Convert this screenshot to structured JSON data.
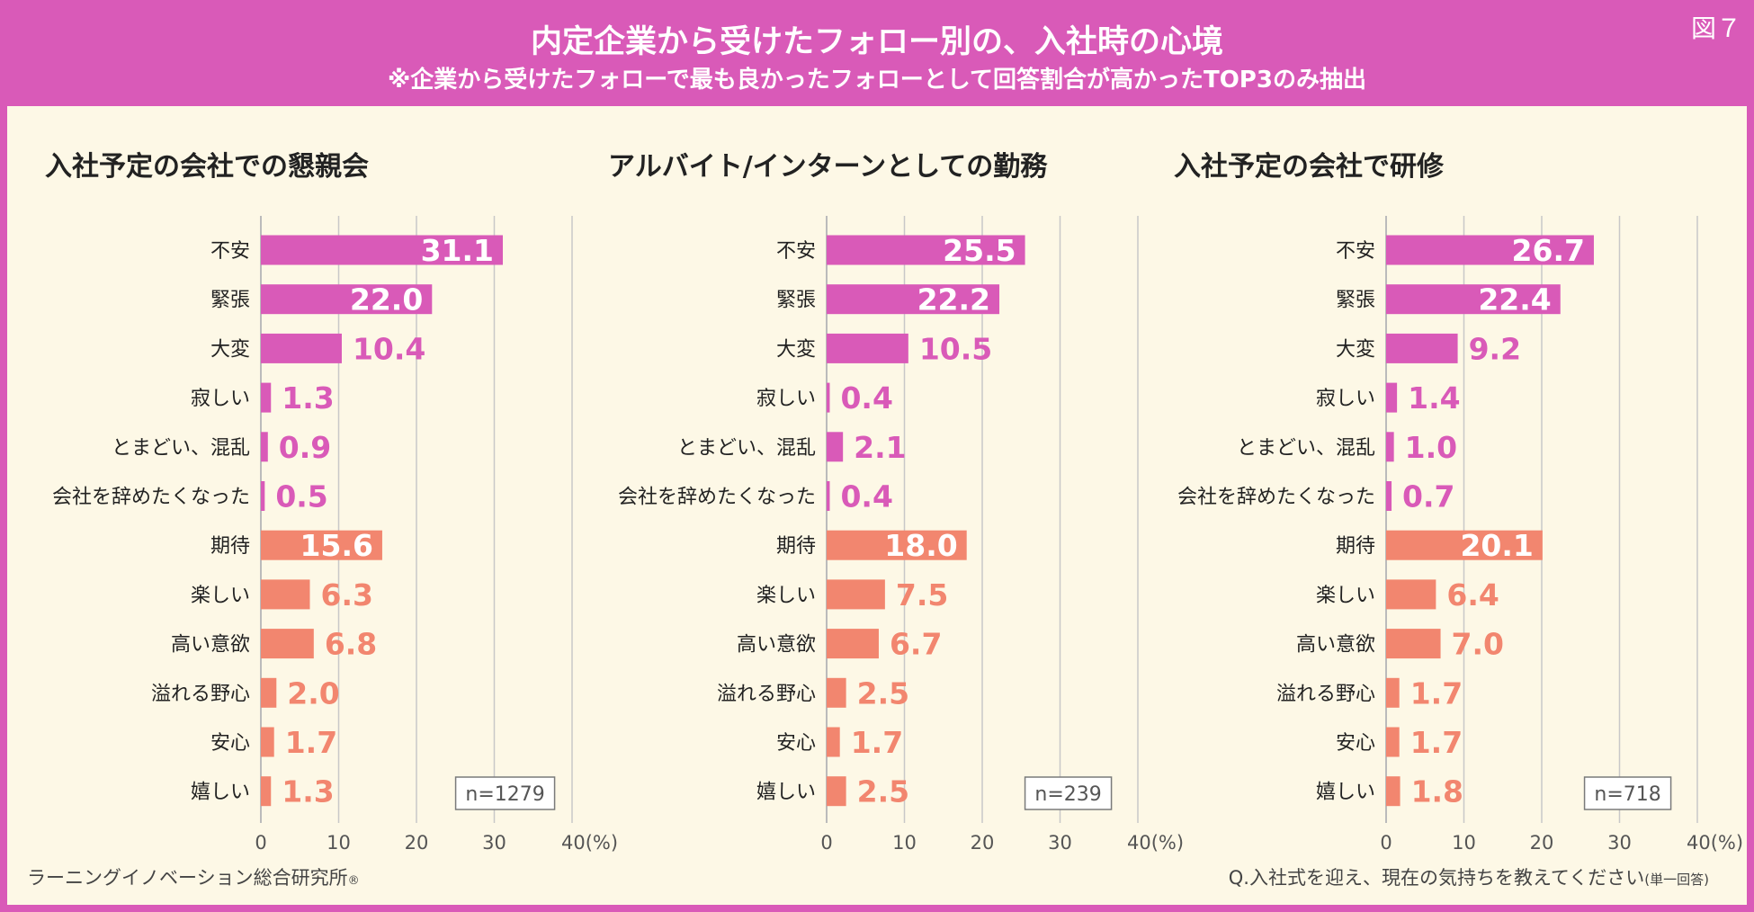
{
  "header": {
    "title": "内定企業から受けたフォロー別の、入社時の心境",
    "subtitle": "※企業から受けたフォローで最も良かったフォローとして回答割合が高かったTOP3のみ抽出",
    "fig_label": "図７"
  },
  "colors": {
    "negative": "#d95ab8",
    "positive": "#f2866f",
    "axis": "#c8c8c8",
    "frame": "#7a7a7a"
  },
  "footer": {
    "left": "ラーニングイノベーション総合研究所",
    "left_mark": "®",
    "right_main": "Q.入社式を迎え、現在の気持ちを教えてください",
    "right_small": "(単一回答)"
  },
  "chart_data": [
    {
      "type": "bar",
      "orientation": "horizontal",
      "title": "入社予定の会社での懇親会",
      "categories": [
        "不安",
        "緊張",
        "大変",
        "寂しい",
        "とまどい、混乱",
        "会社を辞めたくなった",
        "期待",
        "楽しい",
        "高い意欲",
        "溢れる野心",
        "安心",
        "嬉しい"
      ],
      "values": [
        31.1,
        22.0,
        10.4,
        1.3,
        0.9,
        0.5,
        15.6,
        6.3,
        6.8,
        2.0,
        1.7,
        1.3
      ],
      "labels": [
        "31.1",
        "22.0",
        "10.4",
        "1.3",
        "0.9",
        "0.5",
        "15.6",
        "6.3",
        "6.8",
        "2.0",
        "1.7",
        "1.3"
      ],
      "group": [
        "negative",
        "negative",
        "negative",
        "negative",
        "negative",
        "negative",
        "positive",
        "positive",
        "positive",
        "positive",
        "positive",
        "positive"
      ],
      "xlim": [
        0,
        40
      ],
      "xticks": [
        "0",
        "10",
        "20",
        "30",
        "40(%)"
      ],
      "n_label": "n=1279"
    },
    {
      "type": "bar",
      "orientation": "horizontal",
      "title": "アルバイト/インターンとしての勤務",
      "categories": [
        "不安",
        "緊張",
        "大変",
        "寂しい",
        "とまどい、混乱",
        "会社を辞めたくなった",
        "期待",
        "楽しい",
        "高い意欲",
        "溢れる野心",
        "安心",
        "嬉しい"
      ],
      "values": [
        25.5,
        22.2,
        10.5,
        0.4,
        2.1,
        0.4,
        18.0,
        7.5,
        6.7,
        2.5,
        1.7,
        2.5
      ],
      "labels": [
        "25.5",
        "22.2",
        "10.5",
        "0.4",
        "2.1",
        "0.4",
        "18.0",
        "7.5",
        "6.7",
        "2.5",
        "1.7",
        "2.5"
      ],
      "group": [
        "negative",
        "negative",
        "negative",
        "negative",
        "negative",
        "negative",
        "positive",
        "positive",
        "positive",
        "positive",
        "positive",
        "positive"
      ],
      "xlim": [
        0,
        40
      ],
      "xticks": [
        "0",
        "10",
        "20",
        "30",
        "40(%)"
      ],
      "n_label": "n=239"
    },
    {
      "type": "bar",
      "orientation": "horizontal",
      "title": "入社予定の会社で研修",
      "categories": [
        "不安",
        "緊張",
        "大変",
        "寂しい",
        "とまどい、混乱",
        "会社を辞めたくなった",
        "期待",
        "楽しい",
        "高い意欲",
        "溢れる野心",
        "安心",
        "嬉しい"
      ],
      "values": [
        26.7,
        22.4,
        9.2,
        1.4,
        1.0,
        0.7,
        20.1,
        6.4,
        7.0,
        1.7,
        1.7,
        1.8
      ],
      "labels": [
        "26.7",
        "22.4",
        "9.2",
        "1.4",
        "1.0",
        "0.7",
        "20.1",
        "6.4",
        "7.0",
        "1.7",
        "1.7",
        "1.8"
      ],
      "group": [
        "negative",
        "negative",
        "negative",
        "negative",
        "negative",
        "negative",
        "positive",
        "positive",
        "positive",
        "positive",
        "positive",
        "positive"
      ],
      "xlim": [
        0,
        40
      ],
      "xticks": [
        "0",
        "10",
        "20",
        "30",
        "40(%)"
      ],
      "n_label": "n=718"
    }
  ]
}
